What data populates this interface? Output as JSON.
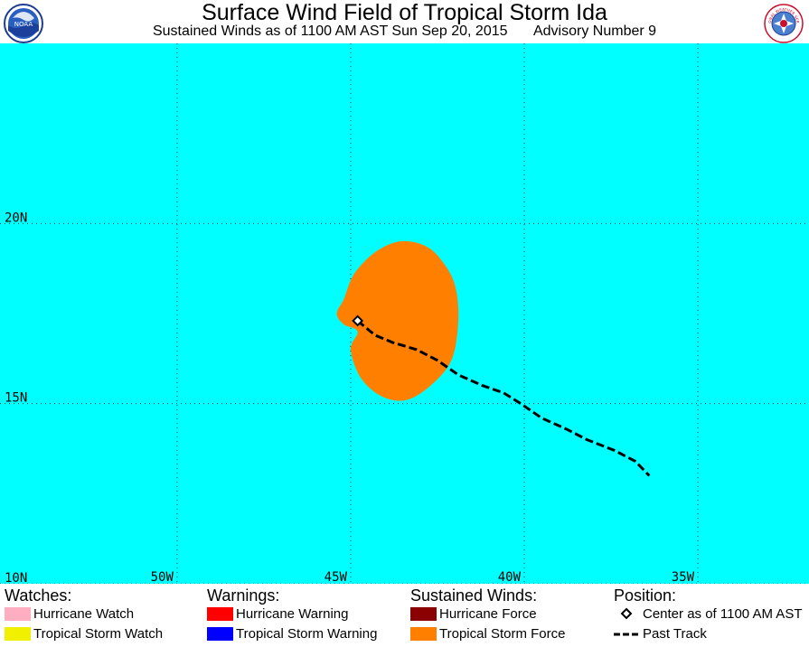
{
  "header": {
    "title": "Surface Wind Field of Tropical Storm Ida",
    "subtitle_time": "Sustained Winds as of 1100 AM AST Sun Sep 20, 2015",
    "subtitle_advisory": "Advisory Number 9",
    "left_logo_text": "NOAA",
    "right_logo_text": "NATIONAL WEATHER SERVICE"
  },
  "map": {
    "background_color": "#00ffff",
    "lat_range": [
      10,
      25
    ],
    "lon_range": [
      -55.1,
      -31.8
    ],
    "lat_labels": [
      {
        "lat": 20,
        "text": "20N"
      },
      {
        "lat": 15,
        "text": "15N"
      },
      {
        "lat": 10,
        "text": "10N"
      }
    ],
    "lon_labels": [
      {
        "lon": -50,
        "text": "50W"
      },
      {
        "lon": -45,
        "text": "45W"
      },
      {
        "lon": -40,
        "text": "40W"
      },
      {
        "lon": -35,
        "text": "35W"
      }
    ],
    "gridlines": true,
    "storm_center": {
      "lat": 17.3,
      "lon": -44.8
    },
    "tropical_storm_force_color": "#ff8000",
    "tropical_storm_force_wind_field": [
      [
        19.5,
        -43.6
      ],
      [
        19.4,
        -42.9
      ],
      [
        19.0,
        -42.4
      ],
      [
        18.3,
        -42.0
      ],
      [
        17.3,
        -41.9
      ],
      [
        16.2,
        -42.1
      ],
      [
        15.5,
        -42.7
      ],
      [
        15.1,
        -43.4
      ],
      [
        15.2,
        -44.1
      ],
      [
        15.7,
        -44.7
      ],
      [
        16.5,
        -45.0
      ],
      [
        17.0,
        -44.8
      ],
      [
        17.2,
        -45.2
      ],
      [
        17.5,
        -45.4
      ],
      [
        17.9,
        -45.2
      ],
      [
        18.6,
        -44.9
      ],
      [
        19.2,
        -44.3
      ]
    ],
    "past_track": [
      [
        17.3,
        -44.8
      ],
      [
        16.9,
        -44.3
      ],
      [
        16.7,
        -43.8
      ],
      [
        16.5,
        -43.1
      ],
      [
        16.2,
        -42.5
      ],
      [
        15.8,
        -41.9
      ],
      [
        15.5,
        -41.2
      ],
      [
        15.3,
        -40.6
      ],
      [
        15.0,
        -40.1
      ],
      [
        14.6,
        -39.5
      ],
      [
        14.3,
        -38.8
      ],
      [
        14.0,
        -38.2
      ],
      [
        13.7,
        -37.4
      ],
      [
        13.4,
        -36.8
      ],
      [
        13.0,
        -36.4
      ]
    ]
  },
  "legend": {
    "watches_heading": "Watches:",
    "warnings_heading": "Warnings:",
    "winds_heading": "Sustained Winds:",
    "position_heading": "Position:",
    "hurricane_watch": {
      "label": "Hurricane Watch",
      "color": "#ffaec2"
    },
    "tropical_storm_watch": {
      "label": "Tropical Storm Watch",
      "color": "#f0f000"
    },
    "hurricane_warning": {
      "label": "Hurricane Warning",
      "color": "#ff0000"
    },
    "tropical_storm_warning": {
      "label": "Tropical Storm Warning",
      "color": "#0000ff"
    },
    "hurricane_force": {
      "label": "Hurricane Force",
      "color": "#8b0000"
    },
    "tropical_storm_force": {
      "label": "Tropical Storm Force",
      "color": "#ff8000"
    },
    "center_label": "Center as of 1100 AM AST",
    "past_track_label": "Past Track"
  }
}
